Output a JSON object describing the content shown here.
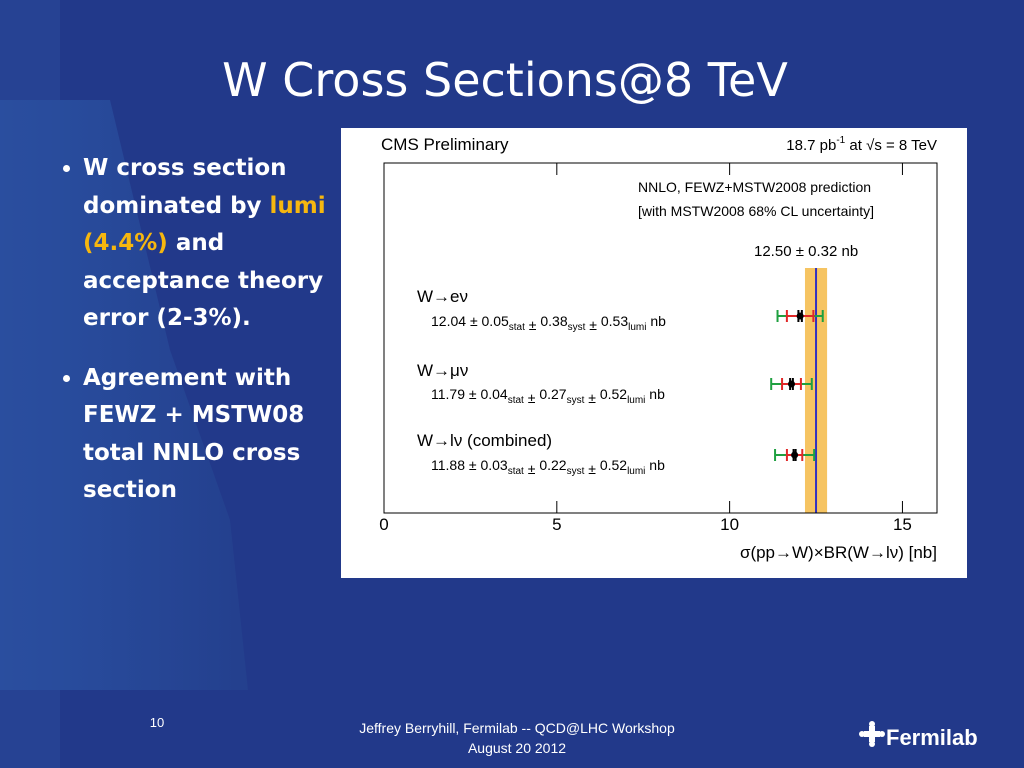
{
  "slide": {
    "title": "W Cross Sections@8 TeV",
    "bullets": [
      [
        "W cross section dominated by",
        "lumi (4.4%)",
        "and acceptance theory error (2-3%)."
      ],
      [
        "Agreement with FEWZ + MSTW08 total NNLO cross section"
      ]
    ],
    "page_number": "10",
    "footer": [
      "Jeffrey Berryhill, Fermilab -- QCD@LHC Workshop",
      "August 20 2012"
    ],
    "logo": "Fermilab"
  },
  "chart_data": {
    "type": "error_bar",
    "title": "CMS Preliminary",
    "lumi_label": "18.7 pb",
    "lumi_exponent": "-1",
    "energy_label": "at √s = 8 TeV",
    "prediction_legend": [
      "NNLO, FEWZ+MSTW2008 prediction",
      "[with MSTW2008 68% CL uncertainty]"
    ],
    "prediction": {
      "value": 12.5,
      "value_label": "12.50",
      "error": 0.32,
      "color": "#f6c462",
      "line_color": "#3030c0"
    },
    "pm_symbol": "±",
    "unit": "nb",
    "error_labels": [
      "stat",
      "syst",
      "lumi"
    ],
    "error_colors": [
      "#000000",
      "#e02828",
      "#1fa040"
    ],
    "series": [
      {
        "name": "W→eν",
        "value": 12.04,
        "stat": 0.05,
        "syst": 0.38,
        "lumi": 0.53
      },
      {
        "name": "W→μν",
        "value": 11.79,
        "stat": 0.04,
        "syst": 0.27,
        "lumi": 0.52
      },
      {
        "name": "W→lν (combined)",
        "value": 11.88,
        "stat": 0.03,
        "syst": 0.22,
        "lumi": 0.52
      }
    ],
    "x_label": "σ(pp→W)×BR(W→lν) [nb]",
    "xlim": [
      0,
      16
    ],
    "xticks": [
      0,
      5,
      10,
      15
    ]
  }
}
